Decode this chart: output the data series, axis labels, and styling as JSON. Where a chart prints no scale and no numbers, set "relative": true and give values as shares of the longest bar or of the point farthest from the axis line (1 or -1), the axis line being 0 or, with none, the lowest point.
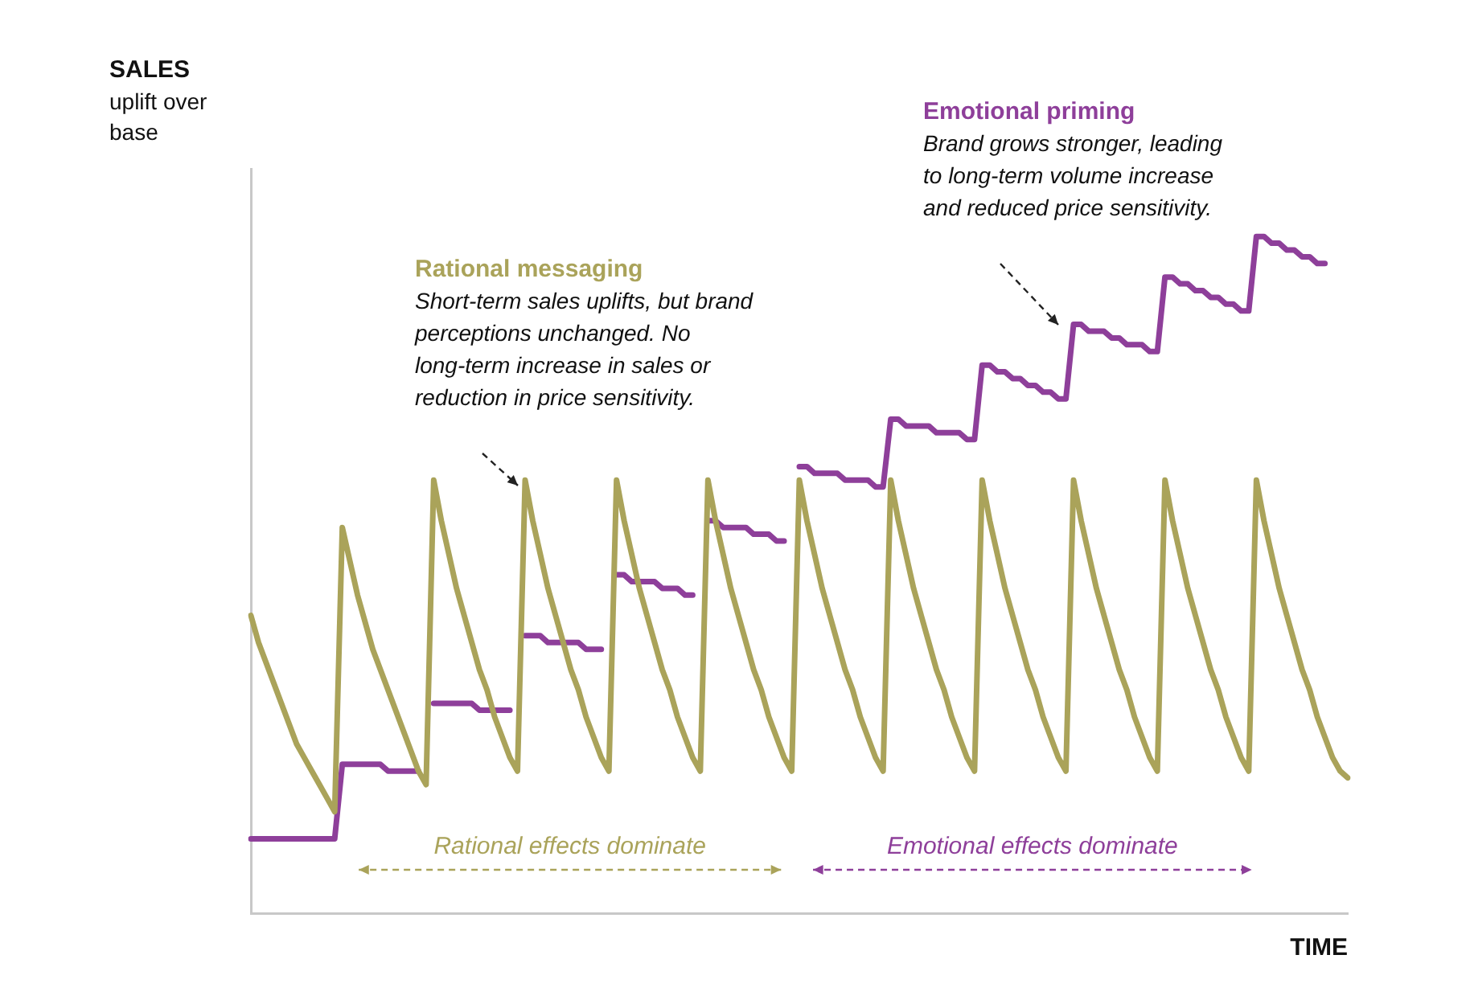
{
  "chart_data": {
    "type": "line",
    "relative": true,
    "xlabel": "TIME",
    "ylabel": "SALES uplift over base",
    "grid": false,
    "legend": false,
    "line_style": "solid",
    "marker": "none",
    "annotations": [
      "Rational messaging",
      "Short-term sales uplifts, but brand perceptions unchanged. No long-term increase in sales or reduction in price sensitivity.",
      "Emotional priming",
      "Brand grows stronger, leading to long-term volume increase and reduced price sensitivity.",
      "Rational effects dominate",
      "Emotional effects dominate"
    ],
    "categories": [
      null,
      null,
      null,
      null,
      null,
      null,
      null,
      null,
      null,
      null,
      null,
      null,
      null,
      null,
      null,
      null,
      null,
      null,
      null,
      null,
      null,
      null,
      null,
      null,
      null,
      null,
      null,
      null,
      null,
      null,
      null,
      null,
      null,
      null,
      null,
      null,
      null,
      null,
      null,
      null,
      null,
      null,
      null,
      null,
      null,
      null,
      null,
      null,
      null,
      null,
      null,
      null,
      null,
      null,
      null,
      null,
      null,
      null,
      null,
      null,
      null,
      null,
      null,
      null,
      null,
      null,
      null,
      null,
      null,
      null,
      null,
      null,
      null,
      null,
      null,
      null,
      null,
      null,
      null,
      null,
      null,
      null,
      null,
      null,
      null,
      null,
      null,
      null,
      null,
      null,
      null,
      null,
      null,
      null,
      null,
      null,
      null,
      null,
      null,
      null,
      null,
      null,
      null,
      null,
      null,
      null,
      null,
      null,
      null,
      null,
      null,
      null,
      null,
      null,
      null,
      null,
      null,
      null,
      null,
      null,
      null,
      null,
      null,
      null,
      null,
      null,
      null,
      null,
      null,
      null,
      null,
      null,
      null,
      null,
      null,
      null,
      null,
      null,
      null,
      null,
      null,
      null,
      null,
      null,
      null
    ],
    "series": [
      {
        "color": "#aaa35a",
        "values": [
          0.44,
          0.4,
          0.37,
          0.34,
          0.31,
          0.28,
          0.25,
          0.23,
          0.21,
          0.19,
          0.17,
          0.15,
          0.57,
          0.52,
          0.47,
          0.43,
          0.39,
          0.36,
          0.33,
          0.3,
          0.27,
          0.24,
          0.21,
          0.19,
          0.64,
          0.58,
          0.53,
          0.48,
          0.44,
          0.4,
          0.36,
          0.33,
          0.29,
          0.26,
          0.23,
          0.21,
          0.64,
          0.58,
          0.53,
          0.48,
          0.44,
          0.4,
          0.36,
          0.33,
          0.29,
          0.26,
          0.23,
          0.21,
          0.64,
          0.58,
          0.53,
          0.48,
          0.44,
          0.4,
          0.36,
          0.33,
          0.29,
          0.26,
          0.23,
          0.21,
          0.64,
          0.58,
          0.53,
          0.48,
          0.44,
          0.4,
          0.36,
          0.33,
          0.29,
          0.26,
          0.23,
          0.21,
          0.64,
          0.58,
          0.53,
          0.48,
          0.44,
          0.4,
          0.36,
          0.33,
          0.29,
          0.26,
          0.23,
          0.21,
          0.64,
          0.58,
          0.53,
          0.48,
          0.44,
          0.4,
          0.36,
          0.33,
          0.29,
          0.26,
          0.23,
          0.21,
          0.64,
          0.58,
          0.53,
          0.48,
          0.44,
          0.4,
          0.36,
          0.33,
          0.29,
          0.26,
          0.23,
          0.21,
          0.64,
          0.58,
          0.53,
          0.48,
          0.44,
          0.4,
          0.36,
          0.33,
          0.29,
          0.26,
          0.23,
          0.21,
          0.64,
          0.58,
          0.53,
          0.48,
          0.44,
          0.4,
          0.36,
          0.33,
          0.29,
          0.26,
          0.23,
          0.21,
          0.64,
          0.58,
          0.53,
          0.48,
          0.44,
          0.4,
          0.36,
          0.33,
          0.29,
          0.26,
          0.23,
          0.21,
          0.2
        ]
      },
      {
        "color": "#8e3f9a",
        "values": [
          0.11,
          0.11,
          0.11,
          0.11,
          0.11,
          0.11,
          0.11,
          0.11,
          0.11,
          0.11,
          0.11,
          0.11,
          0.22,
          0.22,
          0.22,
          0.22,
          0.22,
          0.22,
          0.21,
          0.21,
          0.21,
          0.21,
          0.21,
          null,
          0.31,
          0.31,
          0.31,
          0.31,
          0.31,
          0.31,
          0.3,
          0.3,
          0.3,
          0.3,
          0.3,
          null,
          0.41,
          0.41,
          0.41,
          0.4,
          0.4,
          0.4,
          0.4,
          0.4,
          0.39,
          0.39,
          0.39,
          null,
          0.5,
          0.5,
          0.49,
          0.49,
          0.49,
          0.49,
          0.48,
          0.48,
          0.48,
          0.47,
          0.47,
          null,
          0.58,
          0.58,
          0.57,
          0.57,
          0.57,
          0.57,
          0.56,
          0.56,
          0.56,
          0.55,
          0.55,
          null,
          0.66,
          0.66,
          0.65,
          0.65,
          0.65,
          0.65,
          0.64,
          0.64,
          0.64,
          0.64,
          0.63,
          0.63,
          0.73,
          0.73,
          0.72,
          0.72,
          0.72,
          0.72,
          0.71,
          0.71,
          0.71,
          0.71,
          0.7,
          0.7,
          0.81,
          0.81,
          0.8,
          0.8,
          0.79,
          0.79,
          0.78,
          0.78,
          0.77,
          0.77,
          0.76,
          0.76,
          0.87,
          0.87,
          0.86,
          0.86,
          0.86,
          0.85,
          0.85,
          0.84,
          0.84,
          0.84,
          0.83,
          0.83,
          0.94,
          0.94,
          0.93,
          0.93,
          0.92,
          0.92,
          0.91,
          0.91,
          0.9,
          0.9,
          0.89,
          0.89,
          1.0,
          1.0,
          0.99,
          0.99,
          0.98,
          0.98,
          0.97,
          0.97,
          0.96,
          0.96,
          null,
          null,
          null
        ]
      }
    ]
  }
}
